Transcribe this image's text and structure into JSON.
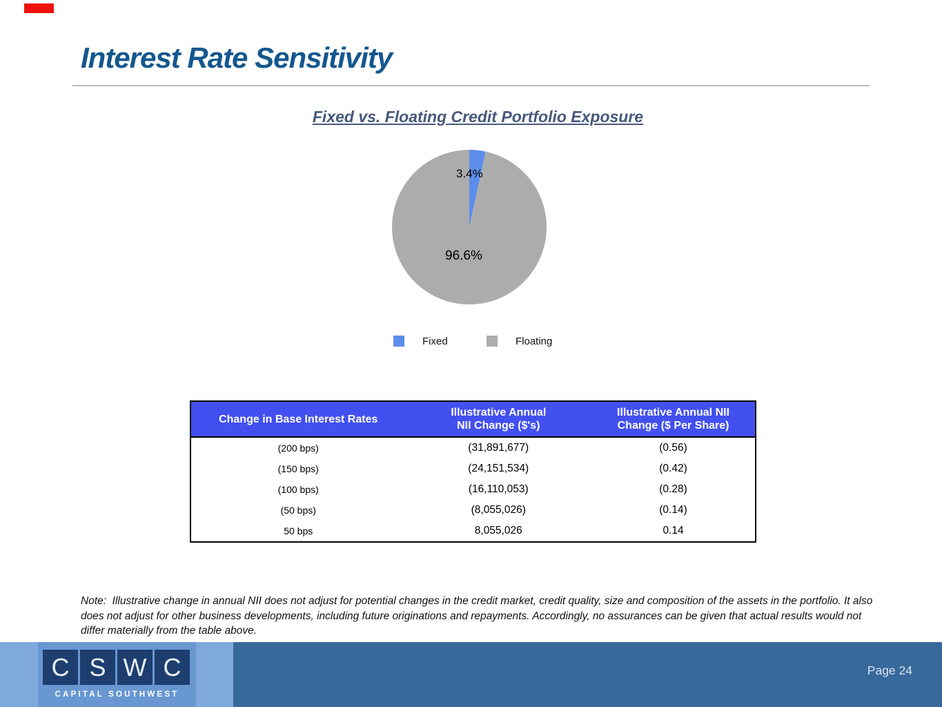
{
  "slide": {
    "title": "Interest Rate Sensitivity",
    "page_label": "Page 24",
    "note": "Note:  Illustrative change in annual NII does not adjust for potential changes in the credit market, credit quality, size and composition of the assets in the portfolio. It also does not adjust for other business developments, including future originations and repayments. Accordingly, no assurances can be given that actual results would not differ materially from the table above."
  },
  "chart_data": {
    "type": "pie",
    "title": "Fixed vs. Floating Credit Portfolio Exposure",
    "slices": [
      {
        "label": "Fixed",
        "value": 3.4,
        "display": "3.4%",
        "color": "#5B8DEB"
      },
      {
        "label": "Floating",
        "value": 96.6,
        "display": "96.6%",
        "color": "#ACACAC"
      }
    ],
    "legend_position": "bottom",
    "start_angle_deg": -90,
    "direction": "clockwise"
  },
  "table": {
    "columns": [
      {
        "lines": [
          "Change in Base Interest Rates",
          ""
        ]
      },
      {
        "lines": [
          "Illustrative Annual",
          "NII Change ($'s)"
        ]
      },
      {
        "lines": [
          "Illustrative Annual NII",
          "Change ($ Per Share)"
        ]
      }
    ],
    "rows": [
      [
        "(200 bps)",
        "(31,891,677)",
        "(0.56)"
      ],
      [
        "(150 bps)",
        "(24,151,534)",
        "(0.42)"
      ],
      [
        "(100 bps)",
        "(16,110,053)",
        "(0.28)"
      ],
      [
        "(50 bps)",
        "(8,055,026)",
        "(0.14)"
      ],
      [
        "50 bps",
        "8,055,026",
        "0.14"
      ]
    ],
    "header_bg": "#4250F0"
  },
  "footer": {
    "logo": {
      "letters": [
        "C",
        "S",
        "W",
        "C"
      ],
      "tagline": "CAPITAL SOUTHWEST"
    }
  }
}
